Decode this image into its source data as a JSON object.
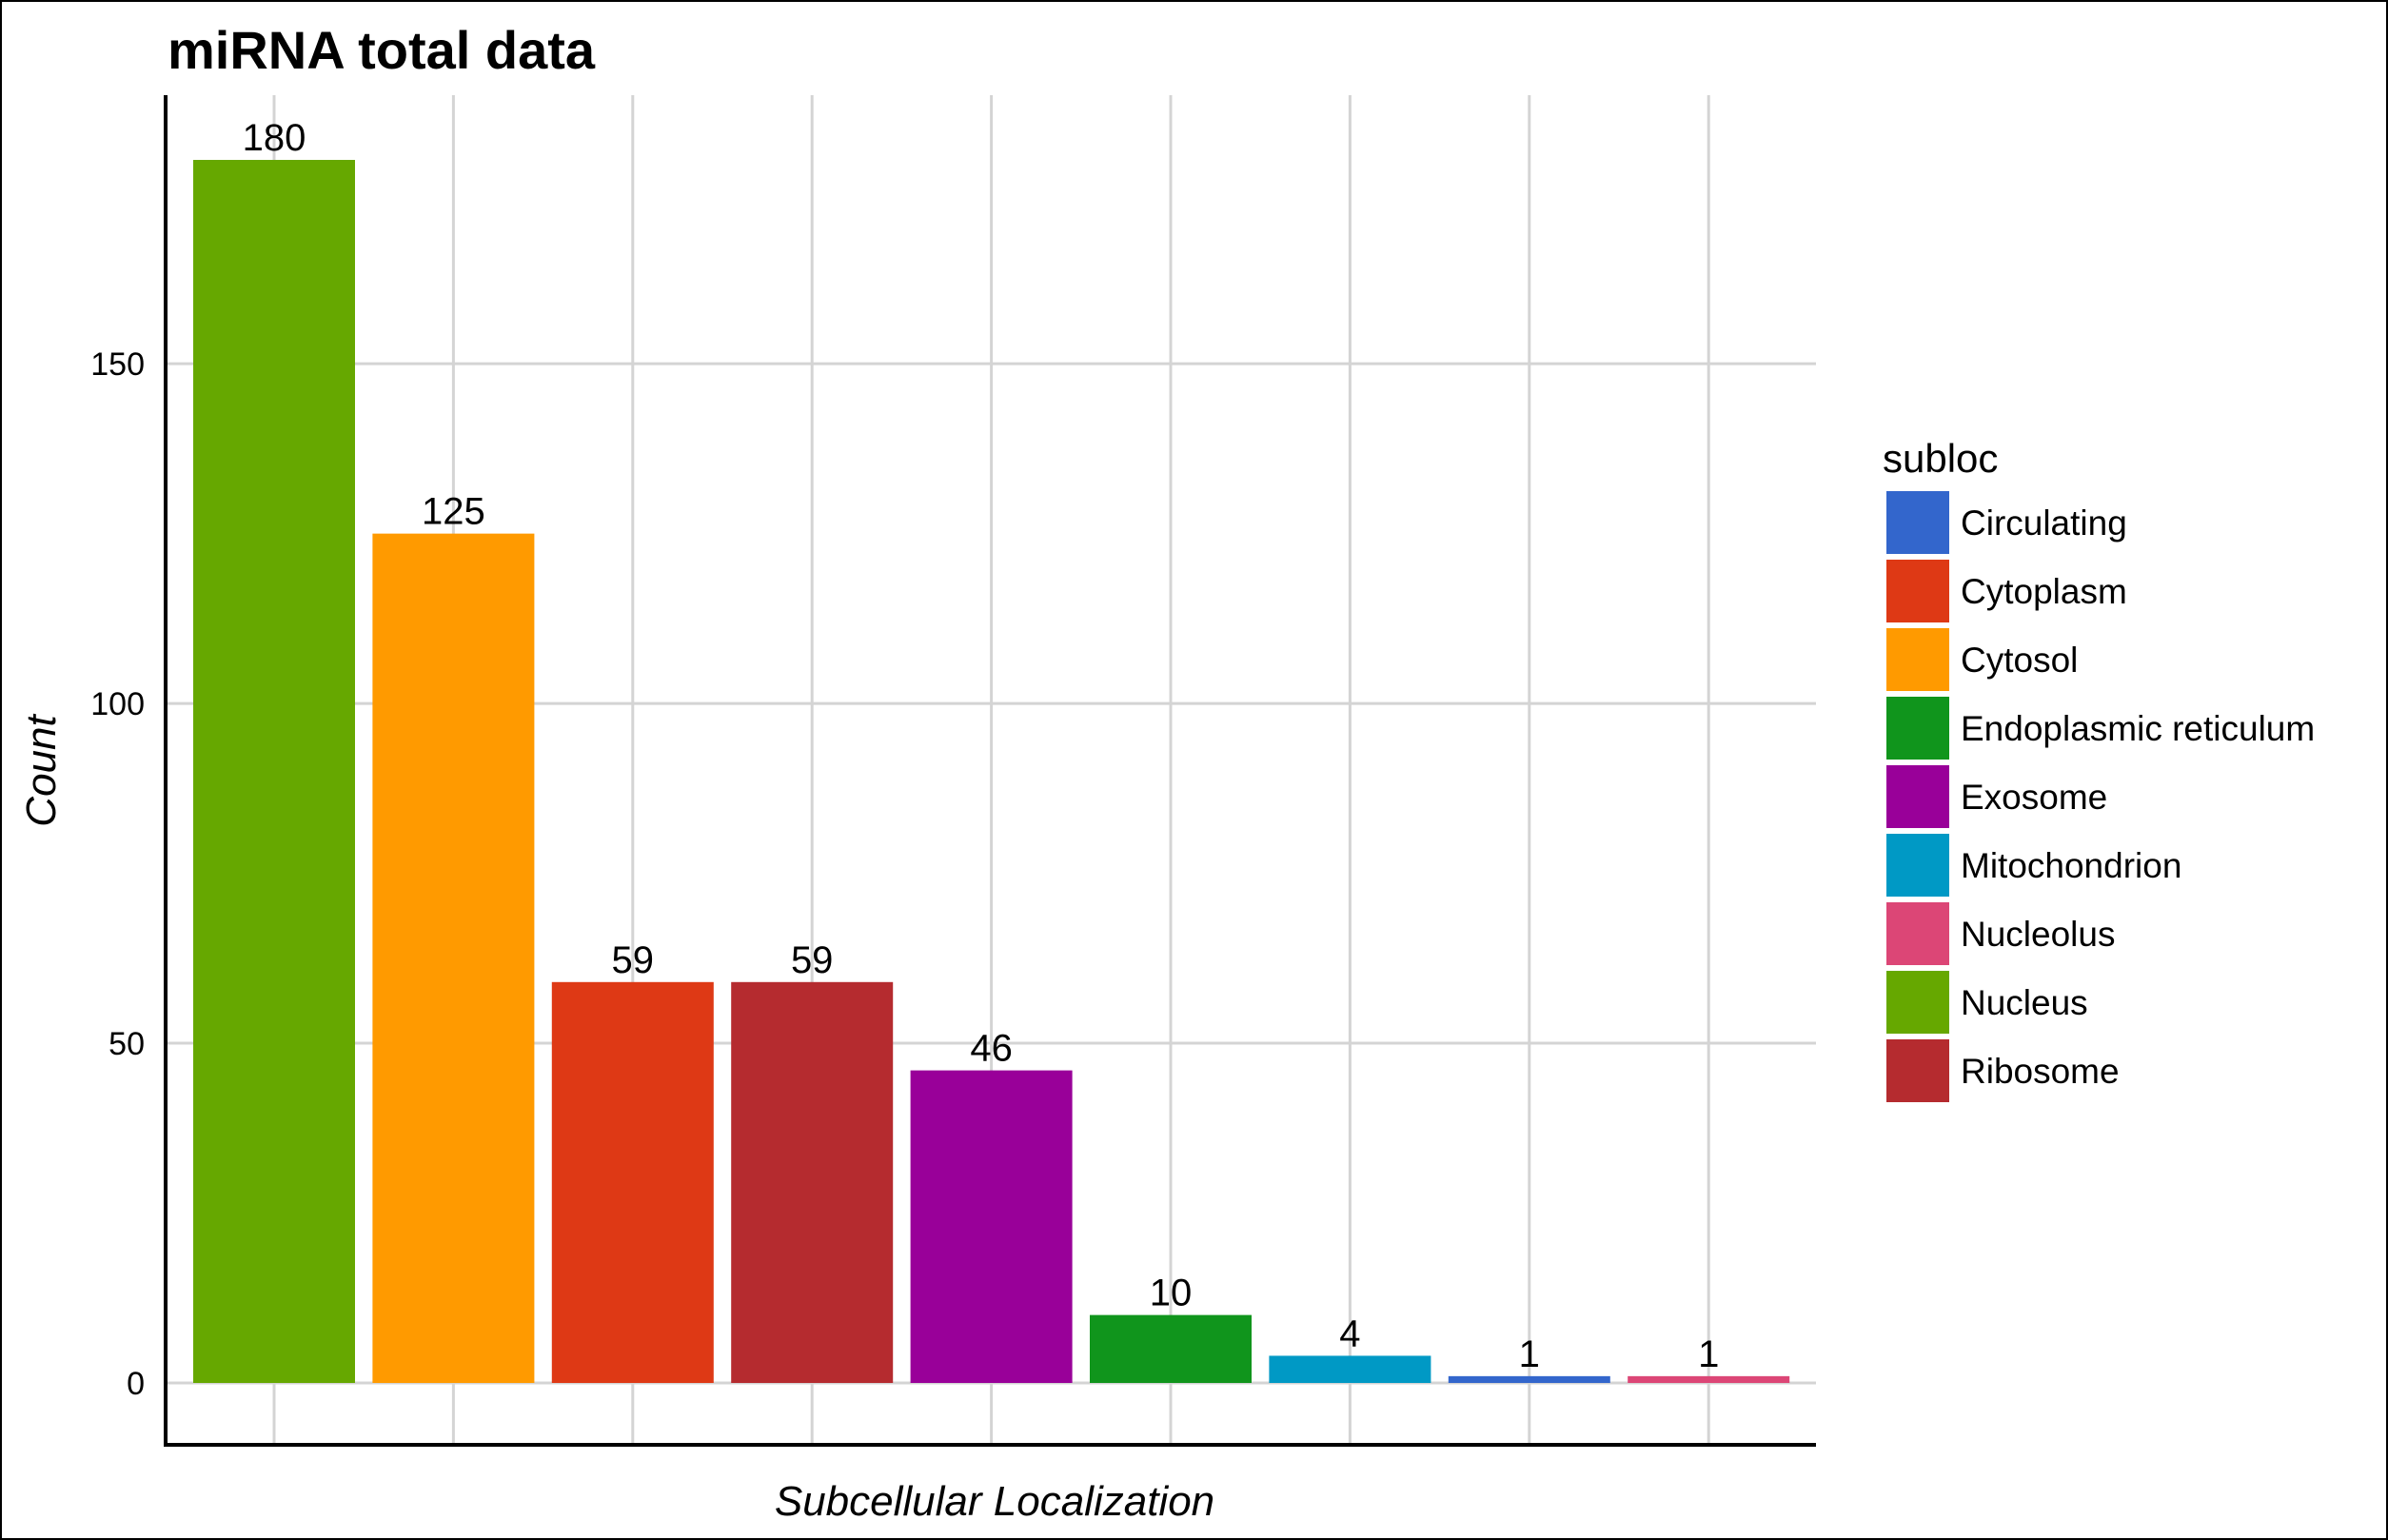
{
  "chart_data": {
    "type": "bar",
    "title": "miRNA total data",
    "xlabel": "Subcellular Localization",
    "ylabel": "Count",
    "ylim": [
      0,
      190
    ],
    "yticks": [
      0,
      50,
      100,
      150
    ],
    "grid": true,
    "legend_position": "right",
    "legend_title": "subloc",
    "bars": [
      {
        "category": "Nucleus",
        "value": 180,
        "color": "#66a800"
      },
      {
        "category": "Cytosol",
        "value": 125,
        "color": "#ff9a00"
      },
      {
        "category": "Cytoplasm",
        "value": 59,
        "color": "#de3915"
      },
      {
        "category": "Ribosome",
        "value": 59,
        "color": "#b52b2f"
      },
      {
        "category": "Exosome",
        "value": 46,
        "color": "#990099"
      },
      {
        "category": "Endoplasmic reticulum",
        "value": 10,
        "color": "#10951c"
      },
      {
        "category": "Mitochondrion",
        "value": 4,
        "color": "#0099c5"
      },
      {
        "category": "Circulating",
        "value": 1,
        "color": "#3366cc"
      },
      {
        "category": "Nucleolus",
        "value": 1,
        "color": "#dc4676"
      }
    ],
    "legend": [
      {
        "label": "Circulating",
        "color": "#3366cc"
      },
      {
        "label": "Cytoplasm",
        "color": "#de3915"
      },
      {
        "label": "Cytosol",
        "color": "#ff9a00"
      },
      {
        "label": "Endoplasmic reticulum",
        "color": "#10951c"
      },
      {
        "label": "Exosome",
        "color": "#990099"
      },
      {
        "label": "Mitochondrion",
        "color": "#0099c5"
      },
      {
        "label": "Nucleolus",
        "color": "#dc4676"
      },
      {
        "label": "Nucleus",
        "color": "#66a800"
      },
      {
        "label": "Ribosome",
        "color": "#b52b2f"
      }
    ]
  }
}
